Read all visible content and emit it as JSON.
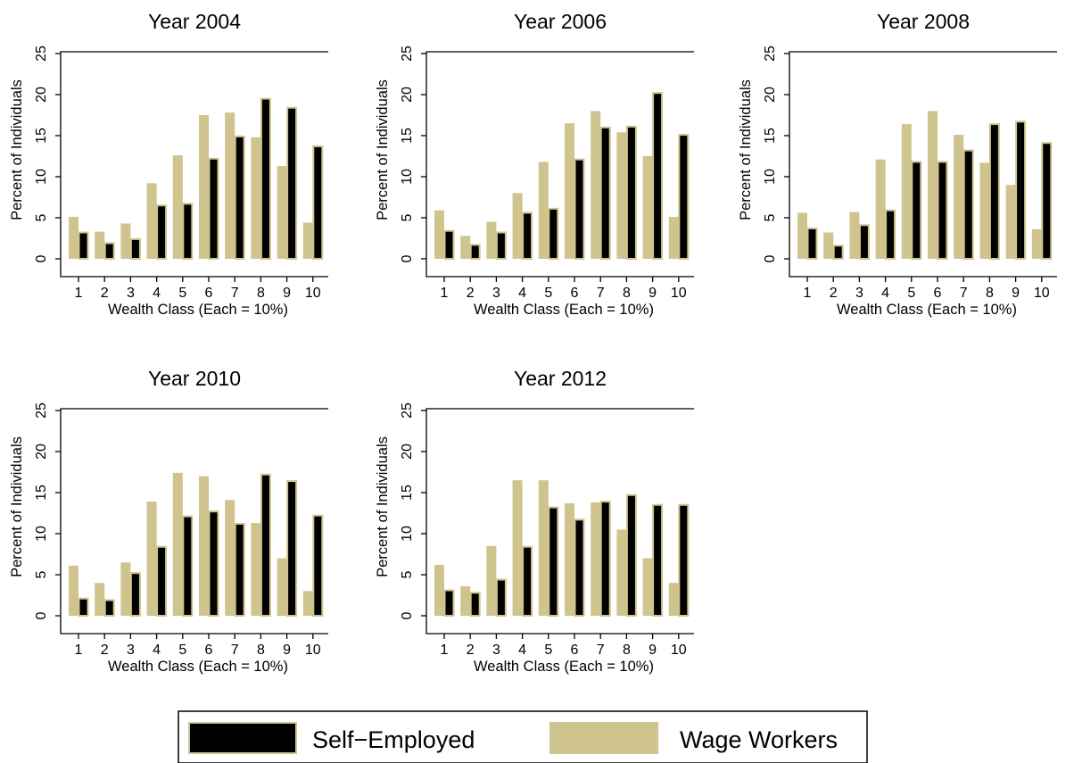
{
  "legend": {
    "entries": [
      {
        "name": "Self−Employed",
        "color": "#000000"
      },
      {
        "name": "Wage Workers",
        "color": "#cfc38e"
      }
    ],
    "placement": "bottom-center"
  },
  "colors": {
    "self_employed_fill": "#000000",
    "wage_workers_fill": "#cfc38e",
    "bar_outline": "#cfc38e"
  },
  "chart_data": [
    {
      "type": "bar",
      "title": "Year 2004",
      "xlabel": "Wealth Class (Each = 10%)",
      "ylabel": "Percent of Individuals",
      "categories": [
        "1",
        "2",
        "3",
        "4",
        "5",
        "6",
        "7",
        "8",
        "9",
        "10"
      ],
      "yticks": [
        "0",
        "5",
        "10",
        "15",
        "20",
        "25"
      ],
      "ylim": [
        0,
        25
      ],
      "grid": false,
      "series": [
        {
          "name": "Wage Workers",
          "values": [
            5.1,
            3.3,
            4.3,
            9.2,
            12.6,
            17.5,
            17.8,
            14.8,
            11.3,
            4.4
          ]
        },
        {
          "name": "Self−Employed",
          "values": [
            3.2,
            1.9,
            2.4,
            6.5,
            6.7,
            12.2,
            14.9,
            19.5,
            18.4,
            13.7
          ]
        }
      ]
    },
    {
      "type": "bar",
      "title": "Year 2006",
      "xlabel": "Wealth Class (Each = 10%)",
      "ylabel": "Percent of Individuals",
      "categories": [
        "1",
        "2",
        "3",
        "4",
        "5",
        "6",
        "7",
        "8",
        "9",
        "10"
      ],
      "yticks": [
        "0",
        "5",
        "10",
        "15",
        "20",
        "25"
      ],
      "ylim": [
        0,
        25
      ],
      "grid": false,
      "series": [
        {
          "name": "Wage Workers",
          "values": [
            5.9,
            2.8,
            4.5,
            8.0,
            11.8,
            16.5,
            18.0,
            15.4,
            12.5,
            5.1
          ]
        },
        {
          "name": "Self−Employed",
          "values": [
            3.4,
            1.7,
            3.2,
            5.6,
            6.1,
            12.1,
            16.0,
            16.1,
            20.2,
            15.1
          ]
        }
      ]
    },
    {
      "type": "bar",
      "title": "Year 2008",
      "xlabel": "Wealth Class (Each = 10%)",
      "ylabel": "Percent of Individuals",
      "categories": [
        "1",
        "2",
        "3",
        "4",
        "5",
        "6",
        "7",
        "8",
        "9",
        "10"
      ],
      "yticks": [
        "0",
        "5",
        "10",
        "15",
        "20",
        "25"
      ],
      "ylim": [
        0,
        25
      ],
      "grid": false,
      "series": [
        {
          "name": "Wage Workers",
          "values": [
            5.6,
            3.2,
            5.7,
            12.1,
            16.4,
            18.0,
            15.1,
            11.7,
            9.0,
            3.6
          ]
        },
        {
          "name": "Self−Employed",
          "values": [
            3.7,
            1.6,
            4.1,
            5.9,
            11.8,
            11.8,
            13.2,
            16.4,
            16.7,
            14.1
          ]
        }
      ]
    },
    {
      "type": "bar",
      "title": "Year 2010",
      "xlabel": "Wealth Class (Each = 10%)",
      "ylabel": "Percent of Individuals",
      "categories": [
        "1",
        "2",
        "3",
        "4",
        "5",
        "6",
        "7",
        "8",
        "9",
        "10"
      ],
      "yticks": [
        "0",
        "5",
        "10",
        "15",
        "20",
        "25"
      ],
      "ylim": [
        0,
        25
      ],
      "grid": false,
      "series": [
        {
          "name": "Wage Workers",
          "values": [
            6.1,
            4.0,
            6.5,
            13.9,
            17.4,
            17.0,
            14.1,
            11.3,
            7.0,
            3.0
          ]
        },
        {
          "name": "Self−Employed",
          "values": [
            2.1,
            1.9,
            5.2,
            8.4,
            12.1,
            12.7,
            11.2,
            17.2,
            16.4,
            12.2
          ]
        }
      ]
    },
    {
      "type": "bar",
      "title": "Year 2012",
      "xlabel": "Wealth Class (Each = 10%)",
      "ylabel": "Percent of Individuals",
      "categories": [
        "1",
        "2",
        "3",
        "4",
        "5",
        "6",
        "7",
        "8",
        "9",
        "10"
      ],
      "yticks": [
        "0",
        "5",
        "10",
        "15",
        "20",
        "25"
      ],
      "ylim": [
        0,
        25
      ],
      "grid": false,
      "series": [
        {
          "name": "Wage Workers",
          "values": [
            6.2,
            3.6,
            8.5,
            16.5,
            16.5,
            13.7,
            13.8,
            10.5,
            7.0,
            4.0
          ]
        },
        {
          "name": "Self−Employed",
          "values": [
            3.1,
            2.8,
            4.4,
            8.4,
            13.2,
            11.7,
            13.9,
            14.7,
            13.5,
            13.5
          ]
        }
      ]
    }
  ]
}
